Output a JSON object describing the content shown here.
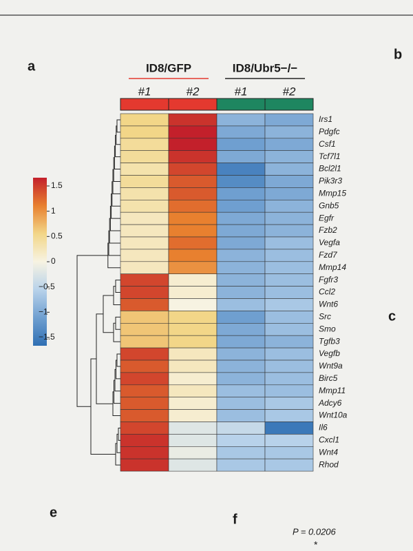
{
  "panel_labels": [
    "a",
    "b",
    "c",
    "e",
    "f"
  ],
  "annotations": {
    "p_value": "P = 0.0206",
    "significance": "*"
  },
  "chart_data": {
    "type": "heatmap",
    "groups": [
      {
        "name": "ID8/GFP",
        "color": "#e4392f",
        "columns": [
          "#1",
          "#2"
        ]
      },
      {
        "name": "ID8/Ubr5−/−",
        "color": "#1e8660",
        "columns": [
          "#1",
          "#2"
        ]
      }
    ],
    "rows": [
      "Irs1",
      "Pdgfc",
      "Csf1",
      "Tcf7l1",
      "Bcl2l1",
      "Pik3r3",
      "Mmp15",
      "Gnb5",
      "Egfr",
      "Fzb2",
      "Vegfa",
      "Fzd7",
      "Mmp14",
      "Fgfr3",
      "Ccl2",
      "Wnt6",
      "Src",
      "Smo",
      "Tgfb3",
      "Vegfb",
      "Wnt9a",
      "Birc5",
      "Mmp11",
      "Adcy6",
      "Wnt10a",
      "Il6",
      "Cxcl1",
      "Wnt4",
      "Rhod"
    ],
    "row_label_colors": [
      "#1a1a1a",
      "#1a1a1a",
      "#c8202a",
      "#1a1a1a",
      "#1a1a1a",
      "#1a1a1a",
      "#1a1a1a",
      "#1a1a1a",
      "#c8202a",
      "#1a1a1a",
      "#c8202a",
      "#1a1a1a",
      "#1a1a1a",
      "#1a1a1a",
      "#c8202a",
      "#1a1a1a",
      "#1a1a1a",
      "#1a1a1a",
      "#1a1a1a",
      "#c8202a",
      "#1a1a1a",
      "#1a1a1a",
      "#1a1a1a",
      "#1a1a1a",
      "#1a1a1a",
      "#1a1a1a",
      "#c8202a",
      "#1a1a1a",
      "#1a1a1a"
    ],
    "values": [
      [
        0.5,
        1.4,
        -0.8,
        -0.9
      ],
      [
        0.5,
        1.5,
        -0.9,
        -0.8
      ],
      [
        0.4,
        1.5,
        -1.0,
        -0.9
      ],
      [
        0.4,
        1.4,
        -0.9,
        -0.8
      ],
      [
        0.3,
        1.3,
        -1.3,
        -0.8
      ],
      [
        0.4,
        1.2,
        -1.2,
        -0.9
      ],
      [
        0.3,
        1.2,
        -1.0,
        -0.9
      ],
      [
        0.3,
        1.1,
        -1.0,
        -0.8
      ],
      [
        0.2,
        1.0,
        -0.9,
        -0.8
      ],
      [
        0.2,
        1.0,
        -0.9,
        -0.8
      ],
      [
        0.2,
        1.1,
        -0.9,
        -0.7
      ],
      [
        0.2,
        1.0,
        -0.8,
        -0.7
      ],
      [
        0.2,
        0.9,
        -0.8,
        -0.7
      ],
      [
        1.3,
        0.1,
        -0.8,
        -0.7
      ],
      [
        1.3,
        0.1,
        -0.8,
        -0.7
      ],
      [
        1.2,
        0.0,
        -0.7,
        -0.6
      ],
      [
        0.6,
        0.5,
        -1.0,
        -0.7
      ],
      [
        0.6,
        0.5,
        -0.9,
        -0.7
      ],
      [
        0.6,
        0.5,
        -0.9,
        -0.8
      ],
      [
        1.3,
        0.2,
        -0.8,
        -0.7
      ],
      [
        1.2,
        0.2,
        -0.8,
        -0.7
      ],
      [
        1.3,
        0.1,
        -0.8,
        -0.7
      ],
      [
        1.2,
        0.2,
        -0.7,
        -0.7
      ],
      [
        1.2,
        0.1,
        -0.7,
        -0.6
      ],
      [
        1.2,
        0.1,
        -0.7,
        -0.6
      ],
      [
        1.3,
        -0.2,
        -0.4,
        -1.4
      ],
      [
        1.4,
        -0.2,
        -0.5,
        -0.5
      ],
      [
        1.4,
        -0.1,
        -0.6,
        -0.6
      ],
      [
        1.4,
        -0.2,
        -0.6,
        -0.6
      ]
    ],
    "zlim": [
      -1.5,
      1.5
    ],
    "colorscale": [
      "#2f6fb3",
      "#6f9fd0",
      "#b8d2ea",
      "#f7f3e2",
      "#f2d688",
      "#e8802f",
      "#c3202b"
    ],
    "colorbar_ticks": [
      1.5,
      1,
      0.5,
      0,
      {
        "value": -0.5,
        "label": "−0.5"
      },
      {
        "value": -1,
        "label": "−1"
      },
      {
        "value": -1.5,
        "label": "−1.5"
      }
    ]
  }
}
